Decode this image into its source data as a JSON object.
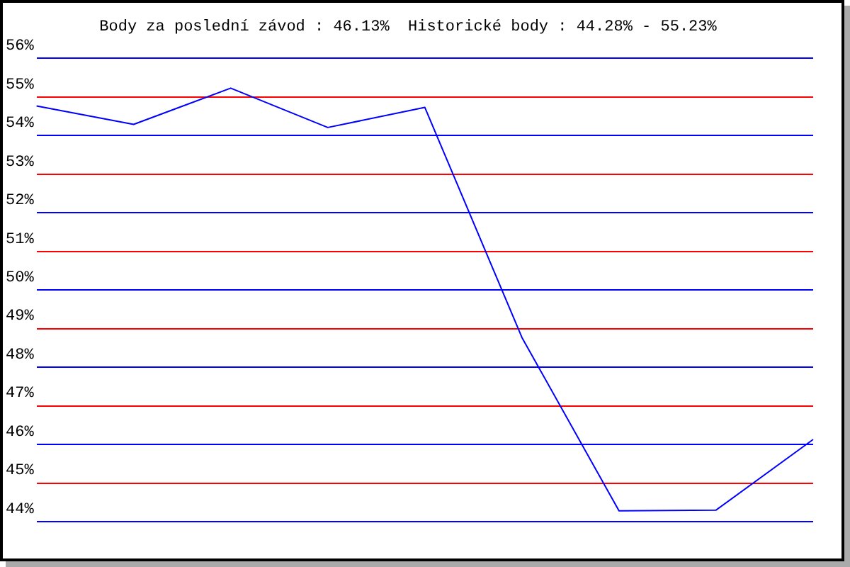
{
  "chart_data": {
    "type": "line",
    "title": "Body za poslední závod : 46.13%  Historické body : 44.28% - 55.23%",
    "categories": [
      null,
      null,
      null,
      null,
      null,
      null,
      null,
      null,
      null
    ],
    "series": [
      {
        "color": "#0000ff",
        "values": [
          54.77,
          54.29,
          55.23,
          54.21,
          54.73,
          48.77,
          44.28,
          44.3,
          46.13
        ]
      }
    ],
    "ylim": [
      44,
      56
    ],
    "yticks": [
      {
        "value": 44,
        "label": "44%"
      },
      {
        "value": 45,
        "label": "45%"
      },
      {
        "value": 46,
        "label": "46%"
      },
      {
        "value": 47,
        "label": "47%"
      },
      {
        "value": 48,
        "label": "48%"
      },
      {
        "value": 49,
        "label": "49%"
      },
      {
        "value": 50,
        "label": "50%"
      },
      {
        "value": 51,
        "label": "51%"
      },
      {
        "value": 52,
        "label": "52%"
      },
      {
        "value": 53,
        "label": "53%"
      },
      {
        "value": 54,
        "label": "54%"
      },
      {
        "value": 55,
        "label": "55%"
      },
      {
        "value": 56,
        "label": "56%"
      }
    ],
    "grid": "y",
    "legend": false,
    "marker": "none",
    "line_style": "solid",
    "tick_labels": "y"
  }
}
